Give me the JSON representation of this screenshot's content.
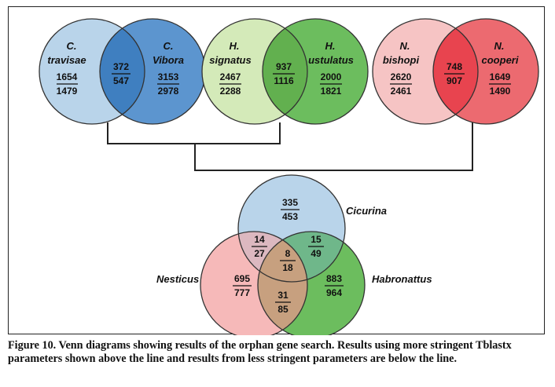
{
  "caption": "Figure 10. Venn diagrams showing results of the orphan gene search. Results using more stringent Tblastx parameters shown above the line and results from less stringent parameters are below the line.",
  "pairs": [
    {
      "left": {
        "genus": "C.",
        "species": "travisae",
        "top": "1654",
        "bottom": "1479",
        "color": "#b9d4ea"
      },
      "overlap": {
        "top": "372",
        "bottom": "547",
        "color": "#3f7fc0"
      },
      "right": {
        "genus": "C.",
        "species": "Vibora",
        "top": "3153",
        "bottom": "2978",
        "color": "#5c95cf"
      }
    },
    {
      "left": {
        "genus": "H.",
        "species": "signatus",
        "top": "2467",
        "bottom": "2288",
        "color": "#d4eab9"
      },
      "overlap": {
        "top": "937",
        "bottom": "1116",
        "color": "#62b04f"
      },
      "right": {
        "genus": "H.",
        "species": "ustulatus",
        "top": "2000",
        "bottom": "1821",
        "color": "#6cbd5e"
      }
    },
    {
      "left": {
        "genus": "N.",
        "species": "bishopi",
        "top": "2620",
        "bottom": "2461",
        "color": "#f6c4c4"
      },
      "overlap": {
        "top": "748",
        "bottom": "907",
        "color": "#e8444f"
      },
      "right": {
        "genus": "N.",
        "species": "cooperi",
        "top": "1649",
        "bottom": "1490",
        "color": "#ec6a70"
      }
    }
  ],
  "triple": {
    "cicurina": {
      "label": "Cicurina",
      "top": "335",
      "bottom": "453",
      "color": "#b9d4ea"
    },
    "nesticus": {
      "label": "Nesticus",
      "top": "695",
      "bottom": "777",
      "color": "#f6b9b9"
    },
    "habronattus": {
      "label": "Habronattus",
      "top": "883",
      "bottom": "964",
      "color": "#6cbd5e"
    },
    "cic_nes": {
      "top": "14",
      "bottom": "27",
      "color": "#dcb8c0"
    },
    "cic_hab": {
      "top": "15",
      "bottom": "49",
      "color": "#6fb78a"
    },
    "nes_hab": {
      "top": "31",
      "bottom": "85",
      "color": "#c7a07f"
    },
    "center": {
      "top": "8",
      "bottom": "18",
      "color": "#c7a07f"
    }
  },
  "connector_color": "#222222"
}
